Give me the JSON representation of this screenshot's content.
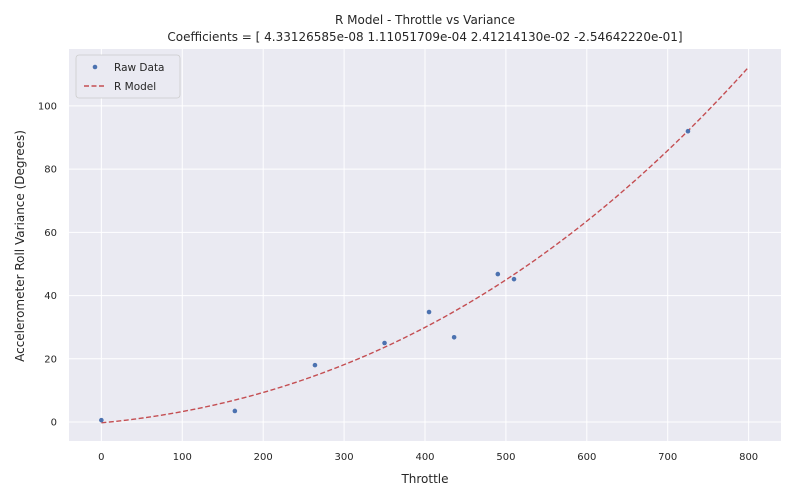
{
  "chart_data": {
    "type": "scatter",
    "title": "R Model - Throttle vs Variance",
    "subtitle": "Coefficients = [ 4.33126585e-08  1.11051709e-04  2.41214130e-02 -2.54642220e-01]",
    "xlabel": "Throttle",
    "ylabel": "Accelerometer Roll Variance (Degrees)",
    "xlim": [
      -40,
      840
    ],
    "ylim": [
      -6,
      118
    ],
    "xticks": [
      0,
      100,
      200,
      300,
      400,
      500,
      600,
      700,
      800
    ],
    "yticks": [
      0,
      20,
      40,
      60,
      80,
      100
    ],
    "grid": true,
    "background": "#EAEAF2",
    "legend_position": "top-left",
    "series": [
      {
        "name": "Raw Data",
        "kind": "scatter",
        "color": "#4C72B0",
        "points": [
          {
            "x": 0,
            "y": 0.6
          },
          {
            "x": 165,
            "y": 3.5
          },
          {
            "x": 264,
            "y": 18.0
          },
          {
            "x": 350,
            "y": 25.0
          },
          {
            "x": 405,
            "y": 34.8
          },
          {
            "x": 436,
            "y": 26.8
          },
          {
            "x": 490,
            "y": 46.8
          },
          {
            "x": 510,
            "y": 45.2
          },
          {
            "x": 725,
            "y": 92.0
          }
        ]
      },
      {
        "name": "R Model",
        "kind": "line",
        "style": "dashed",
        "color": "#C44E52",
        "coefficients": [
          4.33126585e-08,
          0.000111051709,
          0.024121413,
          -0.25464222
        ],
        "x_range": [
          0,
          800
        ]
      }
    ]
  }
}
